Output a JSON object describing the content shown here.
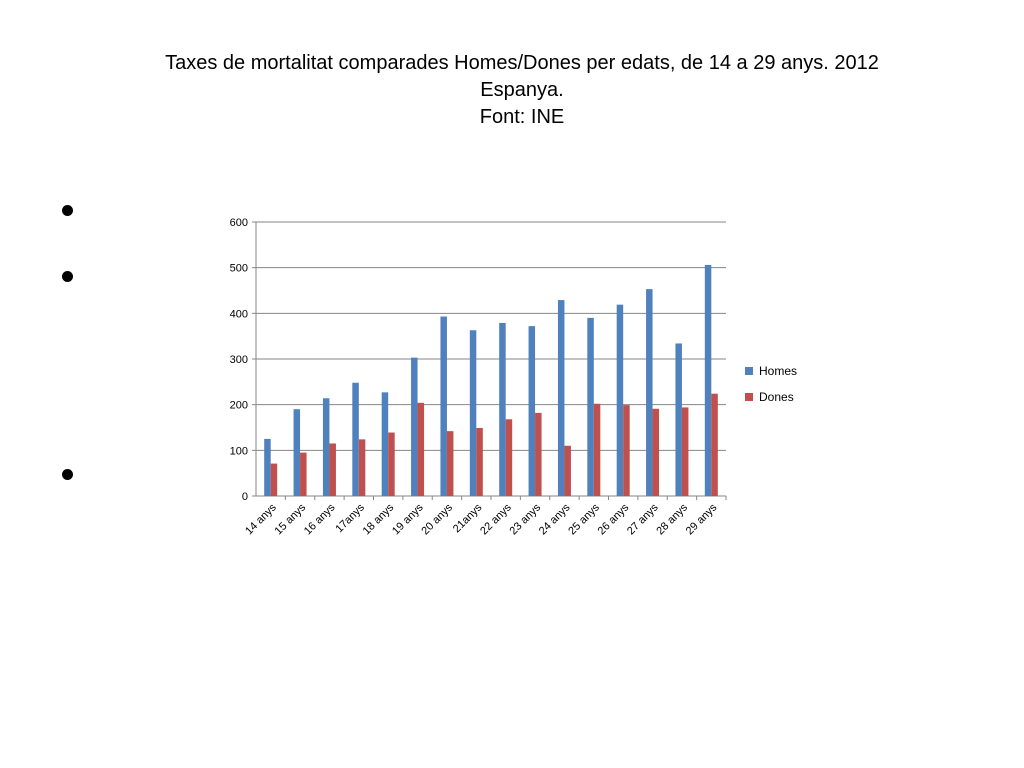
{
  "title": {
    "line1": "Taxes de mortalitat comparades Homes/Dones per edats, de 14 a 29 anys. 2012",
    "line2": "Espanya.",
    "line3": "Font: INE"
  },
  "colors": {
    "homes": "#4F81BD",
    "dones": "#C0504D",
    "grid": "#868686",
    "axis": "#868686"
  },
  "chart_data": {
    "type": "bar",
    "title": "Taxes de mortalitat comparades Homes/Dones per edats, de 14 a 29 anys. 2012 Espanya. Font: INE",
    "xlabel": "",
    "ylabel": "",
    "ylim": [
      0,
      600
    ],
    "yticks": [
      0,
      100,
      200,
      300,
      400,
      500,
      600
    ],
    "grid": true,
    "legend_position": "right",
    "categories": [
      "14 anys",
      "15 anys",
      "16 anys",
      "17anys",
      "18 anys",
      "19 anys",
      "20 anys",
      "21anys",
      "22 anys",
      "23 anys",
      "24 anys",
      "25 anys",
      "26 anys",
      "27 anys",
      "28 anys",
      "29 anys"
    ],
    "series": [
      {
        "name": "Homes",
        "color": "#4F81BD",
        "values": [
          125,
          190,
          214,
          248,
          227,
          303,
          393,
          363,
          379,
          372,
          429,
          390,
          419,
          453,
          334,
          506
        ]
      },
      {
        "name": "Dones",
        "color": "#C0504D",
        "values": [
          71,
          95,
          115,
          124,
          139,
          204,
          142,
          149,
          168,
          182,
          110,
          202,
          199,
          191,
          194,
          224
        ]
      }
    ]
  }
}
